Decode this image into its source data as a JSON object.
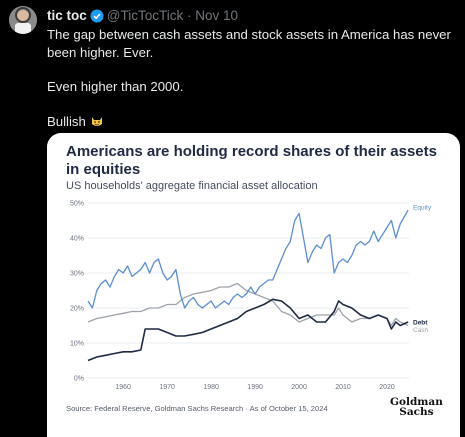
{
  "tweet": {
    "author_name": "tic toc",
    "author_handle": "@TicTocTick",
    "separator": "·",
    "date": "Nov 10",
    "paragraphs": [
      "The gap between cash assets and stock assets in America has never been higher. Ever.",
      "Even higher than 2000.",
      "Bullish"
    ],
    "emoji_icon": "grinning-cat-emoji-icon",
    "verified_color": "#1d9bf0"
  },
  "chart_data": {
    "type": "line",
    "title": "Americans are holding record shares of their assets in equities",
    "subtitle": "US households' aggregate financial asset allocation",
    "ylim": [
      0,
      50
    ],
    "yticks": [
      "0%",
      "10%",
      "20%",
      "30%",
      "40%",
      "50%"
    ],
    "xlim": [
      1952,
      2025
    ],
    "xticks": [
      "1960",
      "1970",
      "1980",
      "1990",
      "2000",
      "2010",
      "2020"
    ],
    "grid": true,
    "legend": "inline-right",
    "series": [
      {
        "name": "Equity",
        "color": "#5b8fd1",
        "x": [
          1952,
          1953,
          1954,
          1955,
          1956,
          1957,
          1958,
          1959,
          1960,
          1961,
          1962,
          1963,
          1964,
          1965,
          1966,
          1967,
          1968,
          1969,
          1970,
          1971,
          1972,
          1973,
          1974,
          1975,
          1976,
          1977,
          1978,
          1979,
          1980,
          1981,
          1982,
          1983,
          1984,
          1985,
          1986,
          1987,
          1988,
          1989,
          1990,
          1991,
          1992,
          1993,
          1994,
          1995,
          1996,
          1997,
          1998,
          1999,
          2000,
          2001,
          2002,
          2003,
          2004,
          2005,
          2006,
          2007,
          2008,
          2009,
          2010,
          2011,
          2012,
          2013,
          2014,
          2015,
          2016,
          2017,
          2018,
          2019,
          2020,
          2021,
          2022,
          2023,
          2024.8
        ],
        "values": [
          22,
          20,
          25,
          27,
          28,
          26,
          29,
          31,
          30,
          32,
          29,
          30,
          31,
          33,
          30,
          33,
          34,
          30,
          28,
          29,
          31,
          24,
          20,
          22,
          23,
          21,
          20,
          21,
          22,
          20,
          21,
          22,
          21,
          23,
          24,
          23,
          24,
          26,
          24,
          26,
          27,
          28,
          28,
          31,
          34,
          37,
          39,
          45,
          47,
          40,
          33,
          36,
          38,
          37,
          40,
          41,
          30,
          33,
          34,
          33,
          35,
          38,
          39,
          38,
          39,
          42,
          39,
          41,
          43,
          45,
          40,
          44,
          48
        ]
      },
      {
        "name": "Debt",
        "color": "#1f2a44",
        "x": [
          1952,
          1954,
          1956,
          1958,
          1960,
          1962,
          1964,
          1965,
          1966,
          1968,
          1970,
          1972,
          1974,
          1976,
          1978,
          1980,
          1982,
          1984,
          1986,
          1988,
          1990,
          1992,
          1994,
          1996,
          1998,
          2000,
          2002,
          2004,
          2006,
          2008,
          2009,
          2010,
          2012,
          2014,
          2016,
          2018,
          2020,
          2021,
          2022,
          2023,
          2024.8
        ],
        "values": [
          5,
          6,
          6.5,
          7,
          7.5,
          7.5,
          8,
          14,
          14,
          14,
          13,
          12,
          12,
          12.5,
          13,
          14,
          15,
          16,
          17,
          19,
          20,
          21,
          22.5,
          22,
          20,
          17,
          18,
          16,
          16,
          19,
          22,
          21,
          20,
          18,
          17,
          18,
          17,
          14,
          16,
          15,
          16
        ]
      },
      {
        "name": "Cash",
        "color": "#9ea3ab",
        "x": [
          1952,
          1954,
          1956,
          1958,
          1960,
          1962,
          1964,
          1966,
          1968,
          1970,
          1972,
          1974,
          1976,
          1978,
          1980,
          1982,
          1984,
          1986,
          1988,
          1990,
          1992,
          1994,
          1996,
          1998,
          2000,
          2002,
          2004,
          2006,
          2008,
          2009,
          2010,
          2012,
          2014,
          2016,
          2018,
          2020,
          2021,
          2022,
          2023,
          2024.8
        ],
        "values": [
          16,
          17,
          17.5,
          18,
          18.5,
          19,
          19,
          20,
          20,
          21,
          21,
          23,
          24,
          24.5,
          25,
          26,
          26,
          27,
          25,
          24,
          23,
          22,
          19,
          18,
          16,
          17,
          18,
          18,
          18,
          20,
          18,
          16,
          17,
          17,
          18,
          17,
          15,
          17,
          16,
          15
        ]
      }
    ],
    "source": "Source: Federal Reserve, Goldman Sachs Research · As of October 15, 2024",
    "logo_text": [
      "Goldman",
      "Sachs"
    ]
  }
}
